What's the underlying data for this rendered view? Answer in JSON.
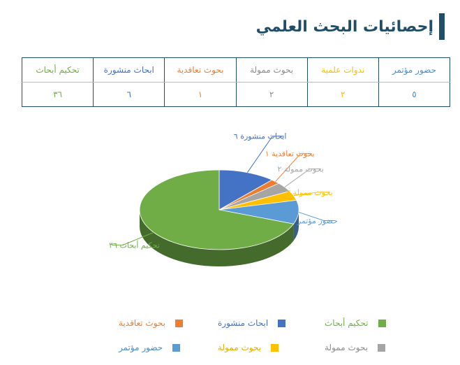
{
  "title": "إحصائيات البحث العلمي",
  "table": {
    "headers": [
      "حضور مؤتمر",
      "ندوات علمية",
      "بحوث ممولة",
      "بحوث تعاقدية",
      "ابحاث منشورة",
      "تحكيم أبحاث"
    ],
    "values": [
      "٥",
      "٢",
      "٢",
      "١",
      "٦",
      "٣٦"
    ],
    "colors": [
      "#4b8dc6",
      "#f3c200",
      "#8c8c8c",
      "#ed7d31",
      "#4472c4",
      "#70ad47"
    ]
  },
  "chart_data": {
    "type": "pie",
    "style": "3d",
    "slices": [
      {
        "name": "ابحاث منشورة",
        "value": 6,
        "label": "ابحاث منشورة ٦",
        "color": "#4472c4"
      },
      {
        "name": "بحوث تعاقدية",
        "value": 1,
        "label": "بحوث تعاقدية ١",
        "color": "#ed7d31"
      },
      {
        "name": "بحوث ممولة",
        "value": 2,
        "label": "بحوث ممولة ٢",
        "color": "#a5a5a5"
      },
      {
        "name": "بحوث ممولة",
        "value": 2,
        "label": "بحوث ممولة ٢",
        "color": "#ffc000"
      },
      {
        "name": "حضور مؤتمر",
        "value": 5,
        "label": "حضور مؤتمر ٥",
        "color": "#5b9bd5"
      },
      {
        "name": "تحكيم أبحاث",
        "value": 36,
        "label": "تحكيم أبحاث ٣٦",
        "color": "#70ad47"
      }
    ],
    "legend": [
      {
        "label": "تحكيم أبحاث",
        "color": "#70ad47",
        "text_color": "#70ad47"
      },
      {
        "label": "ابحاث منشورة",
        "color": "#4472c4",
        "text_color": "#4472c4"
      },
      {
        "label": "بحوث تعاقدية",
        "color": "#ed7d31",
        "text_color": "#ed7d31"
      },
      {
        "label": "بحوث ممولة",
        "color": "#a5a5a5",
        "text_color": "#8c8c8c"
      },
      {
        "label": "بحوث ممولة",
        "color": "#ffc000",
        "text_color": "#e3ac00"
      },
      {
        "label": "حضور مؤتمر",
        "color": "#5b9bd5",
        "text_color": "#4b8dc6"
      }
    ],
    "legend_position": "bottom"
  }
}
